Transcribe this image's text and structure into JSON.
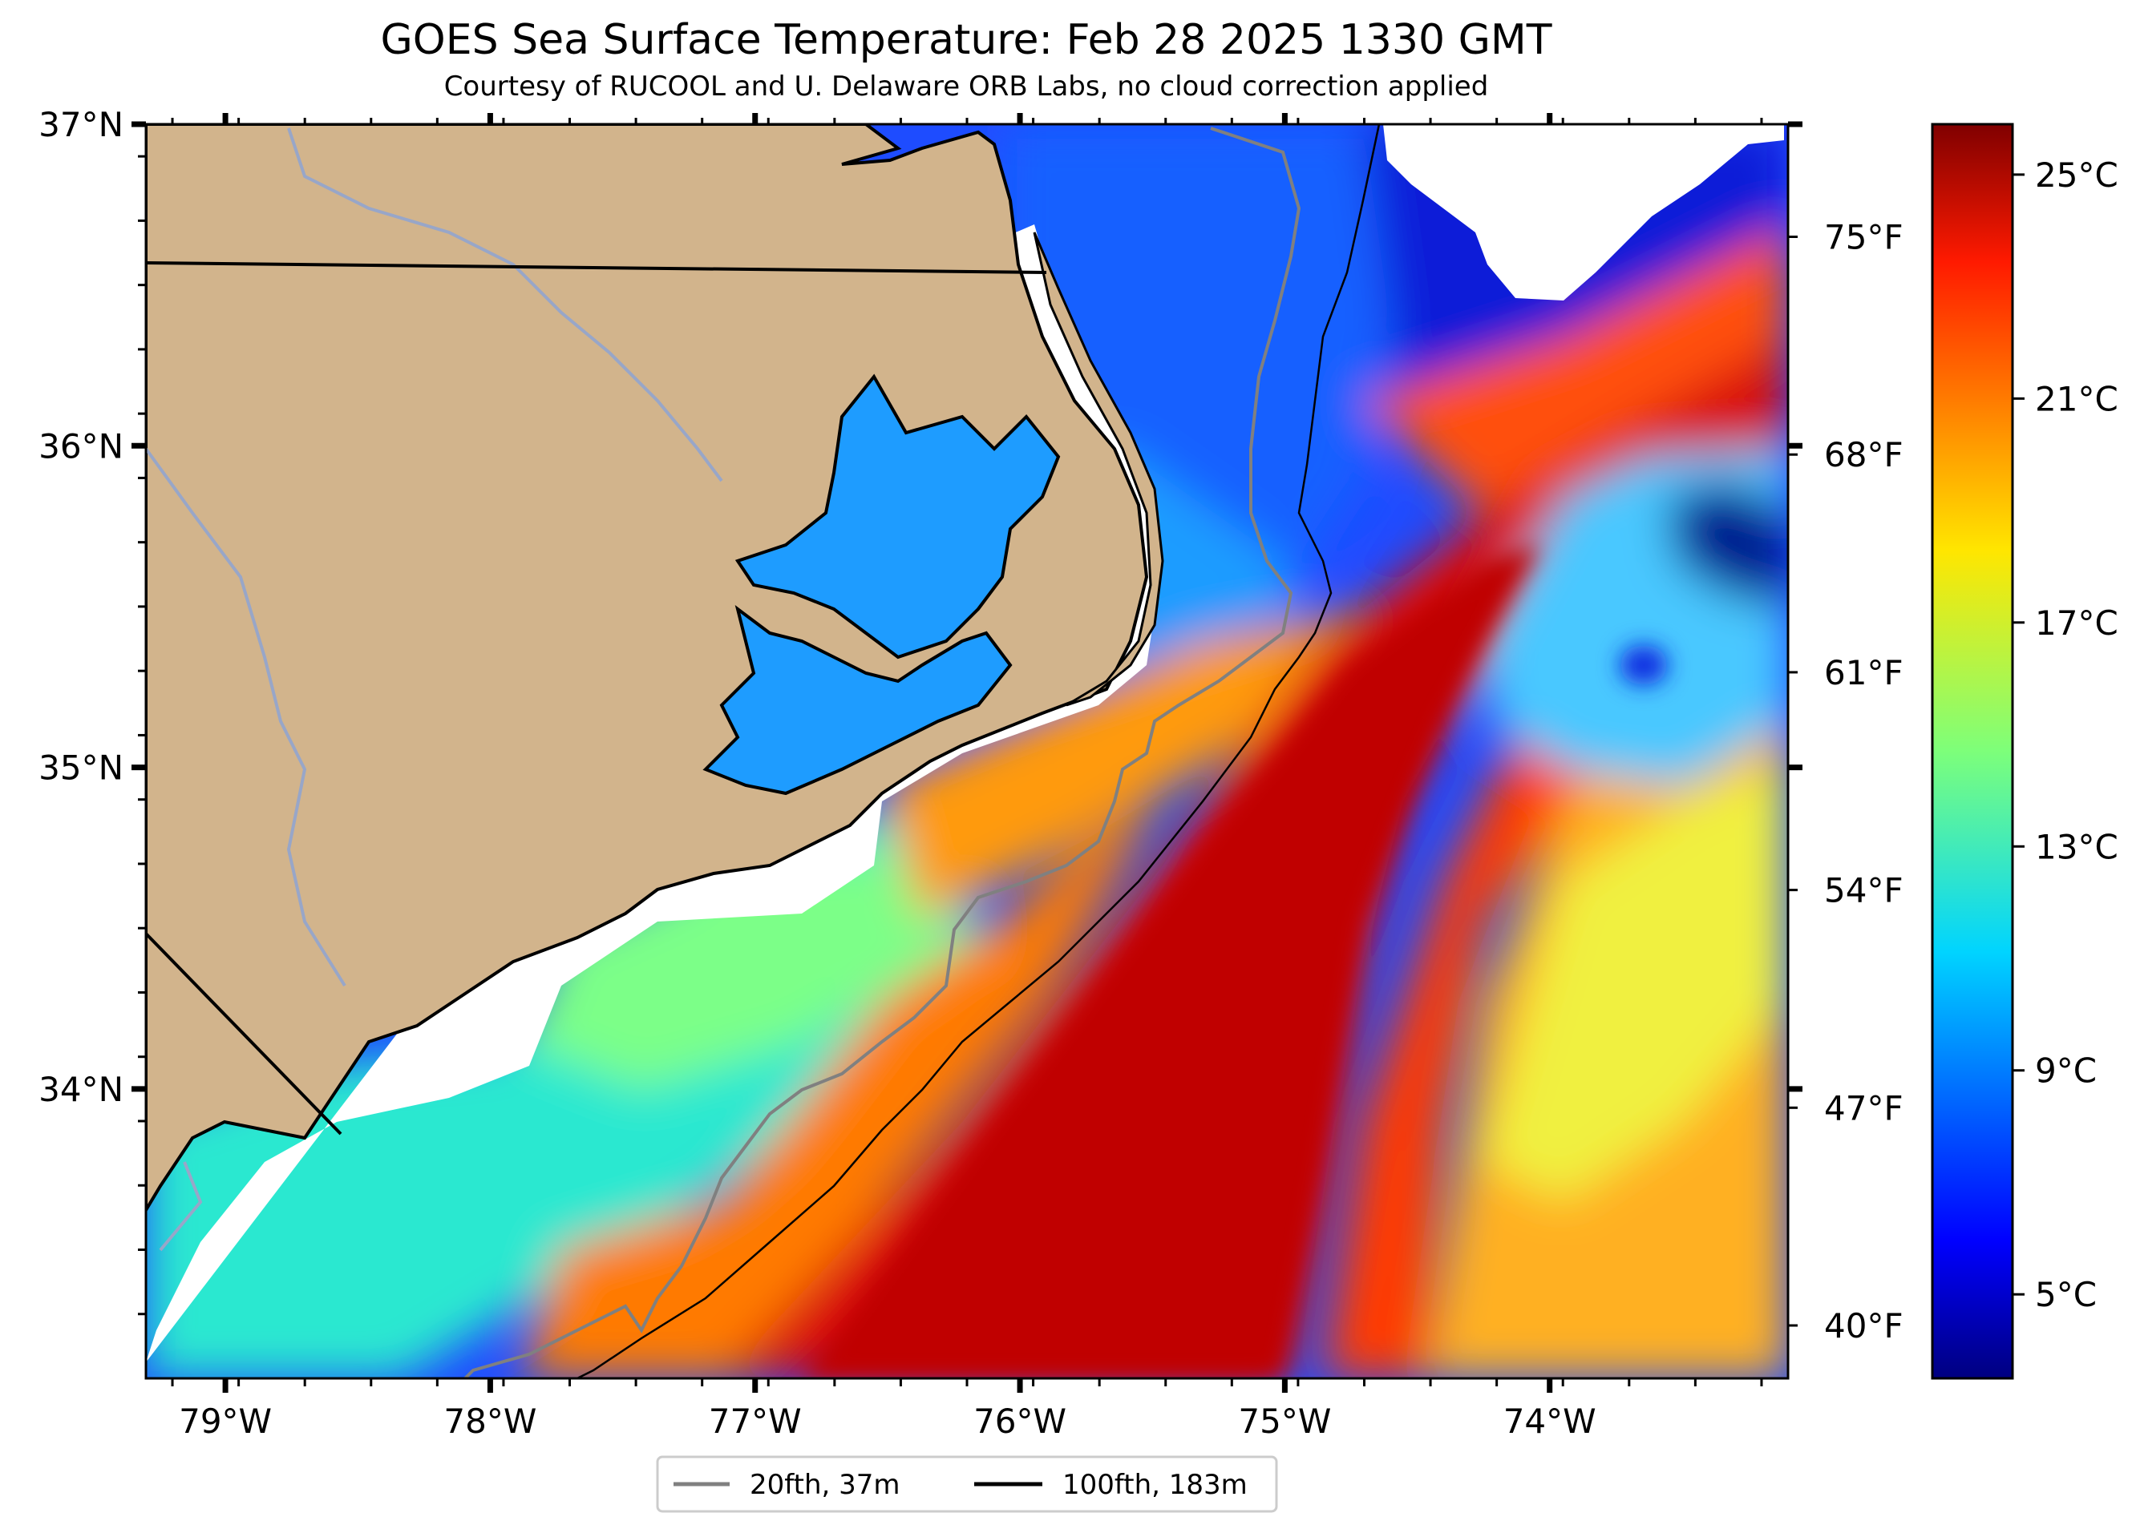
{
  "title": "GOES Sea Surface Temperature: Feb 28 2025 1330 GMT",
  "subtitle": "Courtesy of RUCOOL and U. Delaware ORB Labs, no cloud correction applied",
  "map": {
    "lon_range": [
      -79.3,
      -73.1
    ],
    "lat_range": [
      33.1,
      37.0
    ],
    "lat_ticks": [
      {
        "value": 37,
        "label": "37°N"
      },
      {
        "value": 36,
        "label": "36°N"
      },
      {
        "value": 35,
        "label": "35°N"
      },
      {
        "value": 34,
        "label": "34°N"
      }
    ],
    "lon_ticks": [
      {
        "value": -79,
        "label": "79°W"
      },
      {
        "value": -78,
        "label": "78°W"
      },
      {
        "value": -77,
        "label": "77°W"
      },
      {
        "value": -76,
        "label": "76°W"
      },
      {
        "value": -75,
        "label": "75°W"
      },
      {
        "value": -74,
        "label": "74°W"
      }
    ],
    "fahrenheit_ticks": [
      {
        "value": 75,
        "label": "75°F"
      },
      {
        "value": 68,
        "label": "68°F"
      },
      {
        "value": 61,
        "label": "61°F"
      },
      {
        "value": 54,
        "label": "54°F"
      },
      {
        "value": 47,
        "label": "47°F"
      },
      {
        "value": 40,
        "label": "40°F"
      }
    ],
    "land_color": "#d2b48c",
    "cloud_mask_color": "#ffffff",
    "contour_20fth_color": "#808080",
    "contour_100fth_color": "#000000"
  },
  "colorbar": {
    "colormap": "jet",
    "range_c": [
      3.5,
      25.9
    ],
    "ticks": [
      {
        "value": 25,
        "label": "25°C"
      },
      {
        "value": 21,
        "label": "21°C"
      },
      {
        "value": 17,
        "label": "17°C"
      },
      {
        "value": 13,
        "label": "13°C"
      },
      {
        "value": 9,
        "label": "9°C"
      },
      {
        "value": 5,
        "label": "5°C"
      }
    ]
  },
  "legend": {
    "items": [
      {
        "label": "20fth, 37m",
        "color": "#808080"
      },
      {
        "label": "100fth, 183m",
        "color": "#000000"
      }
    ]
  }
}
